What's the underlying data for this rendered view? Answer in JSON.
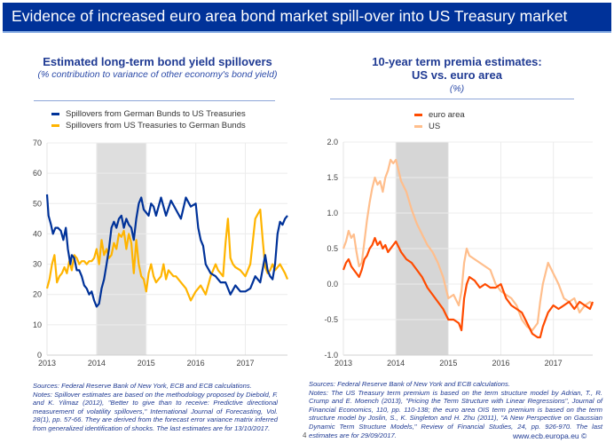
{
  "header": {
    "title": "Evidence of increased euro area bond market spill-over into US Treasury market"
  },
  "left_panel": {
    "title": "Estimated long-term bond yield spillovers",
    "subtitle": "(% contribution to variance of other economy's bond yield)",
    "notes": [
      "Sources: Federal Reserve Bank of New York, ECB and ECB calculations.",
      "Notes: Spillover estimates are based on the methodology proposed by Diebold, F. and K. Yilmaz (2012), \"Better to give than to receive: Predictive directional measurement of volatility spillovers,\" International Journal of Forecasting, Vol. 28(1), pp. 57-66. They are derived from the forecast error variance matrix inferred from generalized identification of shocks. The last estimates are for 13/10/2017."
    ]
  },
  "right_panel": {
    "title_line1": "10-year term premia estimates:",
    "title_line2": "US vs. euro area",
    "subtitle": "(%)",
    "notes": [
      "Sources: Federal Reserve Bank of New York and ECB calculations.",
      "Notes: The US Treasury term premium is based on the term structure model by Adrian, T., R. Crump and E. Moench (2013), \"Pricing the Term Structure with Linear Regressions\", Journal of Financial Economics, 110, pp. 110-138; the euro area OIS term premium is based on the term structure model by Joslin, S., K. Singleton and H. Zhu (2011), \"A New Perspective on Gaussian Dynamic Term Structure Models,\" Review of Financial Studies, 24, pp. 926-970. The last estimates are for 29/09/2017."
    ]
  },
  "footer": {
    "page_number": "4",
    "url": "www.ecb.europa.eu ©"
  },
  "chart_data": [
    {
      "type": "line",
      "title": "Estimated long-term bond yield spillovers",
      "subtitle": "(% contribution to variance of other economy's bond yield)",
      "xlabel": "",
      "ylabel": "",
      "xlim": [
        2013.0,
        2017.85
      ],
      "ylim": [
        0,
        70
      ],
      "yticks": [
        0,
        10,
        20,
        30,
        40,
        50,
        60,
        70
      ],
      "xticks": [
        "2013",
        "2014",
        "2015",
        "2016",
        "2017"
      ],
      "shaded_region": [
        2014.0,
        2015.0
      ],
      "grid": true,
      "legend_position": "top-left",
      "series": [
        {
          "name": "Spillovers from German Bunds to US Treasuries",
          "color": "#003299",
          "x": [
            2013.0,
            2013.03,
            2013.08,
            2013.12,
            2013.17,
            2013.22,
            2013.28,
            2013.33,
            2013.38,
            2013.42,
            2013.47,
            2013.5,
            2013.55,
            2013.6,
            2013.65,
            2013.7,
            2013.75,
            2013.8,
            2013.85,
            2013.9,
            2013.95,
            2014.0,
            2014.05,
            2014.1,
            2014.15,
            2014.2,
            2014.25,
            2014.3,
            2014.35,
            2014.4,
            2014.45,
            2014.5,
            2014.55,
            2014.6,
            2014.65,
            2014.7,
            2014.75,
            2014.8,
            2014.85,
            2014.9,
            2014.95,
            2015.0,
            2015.05,
            2015.1,
            2015.15,
            2015.2,
            2015.3,
            2015.4,
            2015.5,
            2015.6,
            2015.7,
            2015.8,
            2015.9,
            2016.0,
            2016.05,
            2016.1,
            2016.15,
            2016.2,
            2016.3,
            2016.4,
            2016.5,
            2016.6,
            2016.7,
            2016.8,
            2016.9,
            2017.0,
            2017.1,
            2017.2,
            2017.3,
            2017.4,
            2017.45,
            2017.5,
            2017.55,
            2017.6,
            2017.65,
            2017.7,
            2017.75,
            2017.8,
            2017.85
          ],
          "values": [
            53,
            46,
            43,
            40,
            42,
            42,
            41,
            38,
            42,
            35,
            30,
            33,
            32,
            28,
            28,
            26,
            23,
            22,
            20,
            21,
            18,
            16,
            17,
            22,
            25,
            30,
            35,
            42,
            44,
            42,
            45,
            46,
            42,
            45,
            43,
            42,
            38,
            45,
            50,
            52,
            48,
            47,
            46,
            50,
            49,
            46,
            52,
            46,
            51,
            48,
            45,
            52,
            49,
            50,
            42,
            38,
            36,
            30,
            27,
            26,
            24,
            24,
            20,
            23,
            21,
            21,
            22,
            26,
            24,
            33,
            28,
            26,
            25,
            30,
            40,
            44,
            43,
            45,
            46
          ]
        },
        {
          "name": "Spillovers from US Treasuries to German Bunds",
          "color": "#ffb400",
          "x": [
            2013.0,
            2013.05,
            2013.1,
            2013.15,
            2013.2,
            2013.25,
            2013.3,
            2013.35,
            2013.4,
            2013.45,
            2013.5,
            2013.55,
            2013.6,
            2013.65,
            2013.7,
            2013.75,
            2013.8,
            2013.85,
            2013.9,
            2013.95,
            2014.0,
            2014.05,
            2014.1,
            2014.15,
            2014.2,
            2014.25,
            2014.3,
            2014.35,
            2014.4,
            2014.45,
            2014.5,
            2014.55,
            2014.6,
            2014.65,
            2014.7,
            2014.75,
            2014.8,
            2014.85,
            2014.9,
            2014.95,
            2015.0,
            2015.05,
            2015.1,
            2015.15,
            2015.2,
            2015.25,
            2015.3,
            2015.35,
            2015.4,
            2015.45,
            2015.5,
            2015.55,
            2015.6,
            2015.7,
            2015.8,
            2015.9,
            2016.0,
            2016.1,
            2016.2,
            2016.3,
            2016.4,
            2016.45,
            2016.5,
            2016.55,
            2016.6,
            2016.65,
            2016.7,
            2016.75,
            2016.8,
            2016.9,
            2017.0,
            2017.1,
            2017.2,
            2017.3,
            2017.35,
            2017.4,
            2017.45,
            2017.5,
            2017.55,
            2017.6,
            2017.7,
            2017.8,
            2017.85
          ],
          "values": [
            22,
            25,
            30,
            33,
            24,
            26,
            27,
            29,
            27,
            31,
            28,
            33,
            32,
            30,
            31,
            31,
            30,
            31,
            31,
            32,
            35,
            30,
            38,
            33,
            35,
            32,
            33,
            37,
            35,
            40,
            39,
            41,
            35,
            40,
            37,
            27,
            38,
            30,
            26,
            25,
            21,
            27,
            30,
            26,
            24,
            25,
            26,
            30,
            25,
            28,
            27,
            26,
            26,
            24,
            22,
            18,
            21,
            23,
            20,
            26,
            30,
            28,
            27,
            26,
            37,
            45,
            32,
            30,
            29,
            28,
            26,
            30,
            45,
            48,
            38,
            29,
            27,
            28,
            30,
            28,
            30,
            27,
            25
          ]
        }
      ]
    },
    {
      "type": "line",
      "title": "10-year term premia estimates: US vs. euro area",
      "subtitle": "(%)",
      "xlabel": "",
      "ylabel": "",
      "xlim": [
        2013.0,
        2017.75
      ],
      "ylim": [
        -1.0,
        2.0
      ],
      "yticks": [
        -1.0,
        -0.5,
        0.0,
        0.5,
        1.0,
        1.5,
        2.0
      ],
      "xticks": [
        "2013",
        "2014",
        "2015",
        "2016",
        "2017"
      ],
      "shaded_region": [
        2014.0,
        2015.0
      ],
      "grid": true,
      "legend_position": "top-left",
      "series": [
        {
          "name": "euro area",
          "color": "#ff4b00",
          "x": [
            2013.0,
            2013.05,
            2013.1,
            2013.15,
            2013.2,
            2013.25,
            2013.3,
            2013.35,
            2013.4,
            2013.45,
            2013.5,
            2013.55,
            2013.6,
            2013.65,
            2013.7,
            2013.75,
            2013.8,
            2013.85,
            2013.9,
            2013.95,
            2014.0,
            2014.1,
            2014.2,
            2014.3,
            2014.4,
            2014.5,
            2014.6,
            2014.7,
            2014.8,
            2014.9,
            2015.0,
            2015.1,
            2015.2,
            2015.25,
            2015.3,
            2015.35,
            2015.4,
            2015.5,
            2015.6,
            2015.7,
            2015.8,
            2015.9,
            2016.0,
            2016.1,
            2016.2,
            2016.3,
            2016.4,
            2016.5,
            2016.6,
            2016.7,
            2016.75,
            2016.8,
            2016.9,
            2017.0,
            2017.1,
            2017.2,
            2017.3,
            2017.4,
            2017.5,
            2017.6,
            2017.7,
            2017.75
          ],
          "values": [
            0.2,
            0.3,
            0.35,
            0.25,
            0.2,
            0.15,
            0.1,
            0.2,
            0.35,
            0.4,
            0.5,
            0.55,
            0.65,
            0.55,
            0.6,
            0.5,
            0.55,
            0.45,
            0.5,
            0.55,
            0.6,
            0.45,
            0.35,
            0.3,
            0.2,
            0.1,
            -0.05,
            -0.15,
            -0.25,
            -0.35,
            -0.5,
            -0.5,
            -0.55,
            -0.65,
            -0.2,
            0.0,
            0.1,
            0.05,
            -0.05,
            0.0,
            -0.05,
            -0.05,
            0.0,
            -0.2,
            -0.3,
            -0.35,
            -0.4,
            -0.55,
            -0.7,
            -0.75,
            -0.75,
            -0.6,
            -0.4,
            -0.3,
            -0.35,
            -0.3,
            -0.25,
            -0.35,
            -0.25,
            -0.3,
            -0.35,
            -0.25
          ]
        },
        {
          "name": "US",
          "color": "#ffbe8c",
          "x": [
            2013.0,
            2013.05,
            2013.1,
            2013.15,
            2013.2,
            2013.25,
            2013.3,
            2013.35,
            2013.4,
            2013.45,
            2013.5,
            2013.55,
            2013.6,
            2013.65,
            2013.7,
            2013.75,
            2013.8,
            2013.85,
            2013.9,
            2013.95,
            2014.0,
            2014.1,
            2014.2,
            2014.3,
            2014.4,
            2014.5,
            2014.6,
            2014.7,
            2014.8,
            2014.9,
            2015.0,
            2015.1,
            2015.2,
            2015.25,
            2015.3,
            2015.35,
            2015.4,
            2015.5,
            2015.6,
            2015.7,
            2015.8,
            2015.9,
            2016.0,
            2016.1,
            2016.2,
            2016.3,
            2016.4,
            2016.5,
            2016.6,
            2016.7,
            2016.75,
            2016.8,
            2016.9,
            2017.0,
            2017.1,
            2017.2,
            2017.3,
            2017.4,
            2017.5,
            2017.6,
            2017.7,
            2017.75
          ],
          "values": [
            0.5,
            0.6,
            0.75,
            0.65,
            0.7,
            0.45,
            0.25,
            0.3,
            0.6,
            0.9,
            1.15,
            1.35,
            1.5,
            1.4,
            1.45,
            1.3,
            1.5,
            1.6,
            1.75,
            1.7,
            1.75,
            1.45,
            1.3,
            1.05,
            0.85,
            0.7,
            0.55,
            0.45,
            0.3,
            0.1,
            -0.2,
            -0.15,
            -0.3,
            -0.1,
            0.3,
            0.5,
            0.4,
            0.35,
            0.3,
            0.25,
            0.2,
            0.0,
            -0.1,
            -0.15,
            -0.2,
            -0.3,
            -0.5,
            -0.6,
            -0.65,
            -0.55,
            -0.25,
            0.0,
            0.3,
            0.15,
            0.0,
            -0.2,
            -0.25,
            -0.2,
            -0.4,
            -0.3,
            -0.25,
            -0.3
          ]
        }
      ]
    }
  ]
}
